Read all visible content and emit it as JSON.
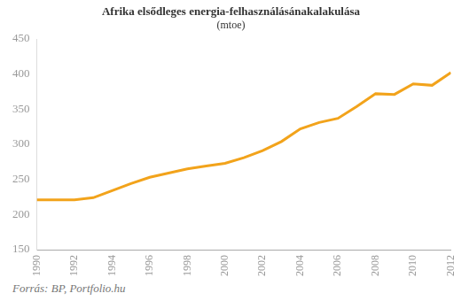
{
  "chart_data": {
    "type": "line",
    "title": "Afrika elsődleges energia-felhasználásánakalakulása",
    "subtitle": "(mtoe)",
    "source": "Forrás: BP, Portfolio.hu",
    "categories": [
      1990,
      null,
      1992,
      null,
      1994,
      null,
      1996,
      null,
      1998,
      null,
      2000,
      null,
      2002,
      null,
      2004,
      null,
      2006,
      null,
      2008,
      null,
      2010,
      null,
      2012
    ],
    "values": [
      221,
      221,
      221,
      224,
      234,
      244,
      253,
      259,
      265,
      269,
      273,
      281,
      291,
      304,
      322,
      331,
      337,
      354,
      372,
      371,
      386,
      384,
      402
    ],
    "color": "#f2a31b",
    "marker": "none",
    "line_style": "solid",
    "ylim": [
      150,
      450
    ],
    "yticks": [
      150,
      200,
      250,
      300,
      350,
      400,
      450
    ],
    "grid": false
  }
}
